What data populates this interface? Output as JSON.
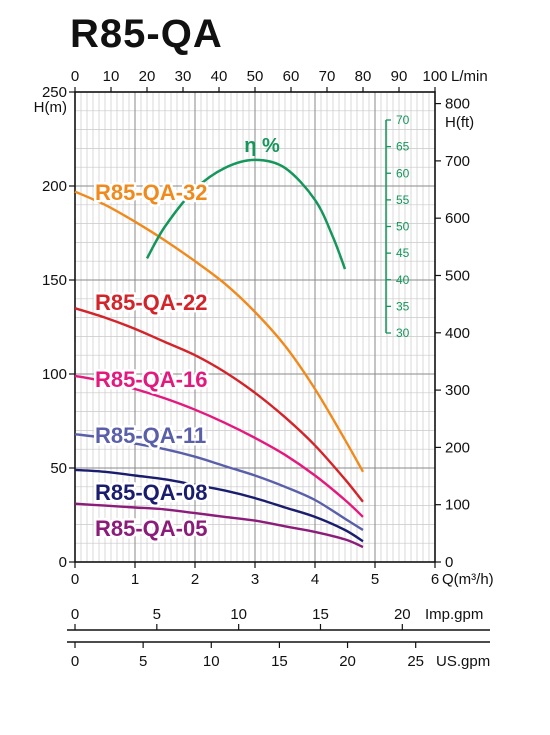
{
  "page": {
    "title": "R85-QA"
  },
  "chart_data": {
    "type": "line",
    "title": "R85-QA",
    "xlabel": "Q(m³/h)",
    "ylabel": "H(m)",
    "xlim": [
      0,
      6
    ],
    "ylim": [
      0,
      250
    ],
    "grid": true,
    "x_tick_labels": [
      "0",
      "1",
      "2",
      "3",
      "4",
      "5",
      "6"
    ],
    "y_tick_labels": [
      "0",
      "50",
      "100",
      "150",
      "200",
      "250"
    ],
    "top_axis": {
      "label": "L/min",
      "ticks": [
        "0",
        "10",
        "20",
        "30",
        "40",
        "50",
        "60",
        "70",
        "80",
        "90",
        "100"
      ]
    },
    "right_axis": {
      "label": "H(ft)",
      "ticks": [
        "0",
        "100",
        "200",
        "300",
        "400",
        "500",
        "600",
        "700",
        "800"
      ]
    },
    "imp_axis": {
      "label": "Imp.gpm",
      "ticks": [
        "0",
        "5",
        "10",
        "15",
        "20"
      ]
    },
    "us_axis": {
      "label": "US.gpm",
      "ticks": [
        "0",
        "5",
        "10",
        "15",
        "20",
        "25"
      ]
    },
    "efficiency_axis": {
      "label": "η %",
      "ticks": [
        "30",
        "35",
        "40",
        "45",
        "50",
        "55",
        "60",
        "65",
        "70"
      ],
      "range": [
        30,
        70
      ]
    },
    "series": [
      {
        "name": "R85-QA-32",
        "color": "#f08a1c",
        "x": [
          0,
          0.5,
          1,
          1.5,
          2,
          2.5,
          3,
          3.5,
          4,
          4.5,
          4.8
        ],
        "y": [
          197,
          190,
          181,
          171,
          160,
          148,
          133,
          115,
          92,
          65,
          48
        ]
      },
      {
        "name": "R85-QA-22",
        "color": "#d3242a",
        "x": [
          0,
          0.5,
          1,
          1.5,
          2,
          2.5,
          3,
          3.5,
          4,
          4.5,
          4.8
        ],
        "y": [
          135,
          130,
          124,
          117,
          110,
          101,
          90,
          77,
          62,
          44,
          32
        ]
      },
      {
        "name": "R85-QA-16",
        "color": "#e4197e",
        "x": [
          0,
          0.5,
          1,
          1.5,
          2,
          2.5,
          3,
          3.5,
          4,
          4.5,
          4.8
        ],
        "y": [
          99,
          96,
          92,
          87,
          81,
          74,
          66,
          57,
          46,
          33,
          24
        ]
      },
      {
        "name": "R85-QA-11",
        "color": "#5a5faa",
        "x": [
          0,
          0.5,
          1,
          1.5,
          2,
          2.5,
          3,
          3.5,
          4,
          4.5,
          4.8
        ],
        "y": [
          68,
          66,
          63,
          60,
          56,
          51,
          46,
          40,
          33,
          23,
          17
        ]
      },
      {
        "name": "R85-QA-08",
        "color": "#1a1d6e",
        "x": [
          0,
          0.5,
          1,
          1.5,
          2,
          2.5,
          3,
          3.5,
          4,
          4.5,
          4.8
        ],
        "y": [
          49,
          48,
          46,
          44,
          41,
          38,
          34,
          29,
          24,
          17,
          11
        ]
      },
      {
        "name": "R85-QA-05",
        "color": "#8b1c7a",
        "x": [
          0,
          0.5,
          1,
          1.5,
          2,
          2.5,
          3,
          3.5,
          4,
          4.5,
          4.8
        ],
        "y": [
          31,
          30,
          29,
          28,
          26,
          24,
          22,
          19,
          16,
          12,
          8
        ]
      },
      {
        "name": "η %",
        "color": "#15965a",
        "axis": "efficiency",
        "x": [
          1.2,
          1.5,
          2,
          2.5,
          3,
          3.5,
          4,
          4.3,
          4.5
        ],
        "y": [
          44,
          50,
          57,
          61,
          62.5,
          61,
          55,
          48,
          42
        ]
      }
    ]
  }
}
